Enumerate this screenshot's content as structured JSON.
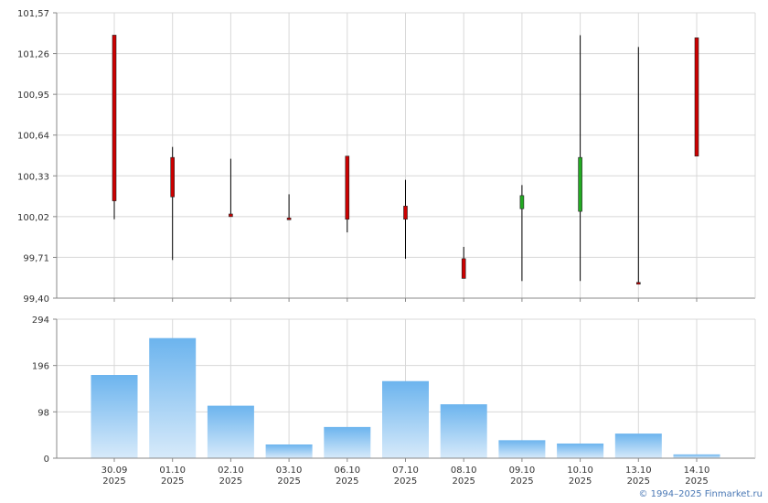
{
  "chart_data": [
    {
      "type": "candlestick",
      "ylim": [
        99.4,
        101.57
      ],
      "y_ticks": [
        "99,40",
        "99,71",
        "100,02",
        "100,33",
        "100,64",
        "100,95",
        "101,26",
        "101,57"
      ],
      "grid": true,
      "up_color": "#22aa22",
      "down_color": "#cc0000",
      "candles": [
        {
          "date": "30.09",
          "open": 101.4,
          "high": 101.4,
          "low": 100.0,
          "close": 100.14
        },
        {
          "date": "01.10",
          "open": 100.47,
          "high": 100.55,
          "low": 99.69,
          "close": 100.17
        },
        {
          "date": "02.10",
          "open": 100.04,
          "high": 100.46,
          "low": 100.02,
          "close": 100.02
        },
        {
          "date": "03.10",
          "open": 100.01,
          "high": 100.19,
          "low": 100.0,
          "close": 100.0
        },
        {
          "date": "06.10",
          "open": 100.48,
          "high": 100.48,
          "low": 99.9,
          "close": 100.0
        },
        {
          "date": "07.10",
          "open": 100.1,
          "high": 100.3,
          "low": 99.7,
          "close": 100.0
        },
        {
          "date": "08.10",
          "open": 99.7,
          "high": 99.79,
          "low": 99.55,
          "close": 99.55
        },
        {
          "date": "09.10",
          "open": 100.08,
          "high": 100.26,
          "low": 99.53,
          "close": 100.18
        },
        {
          "date": "10.10",
          "open": 100.06,
          "high": 101.4,
          "low": 99.53,
          "close": 100.47
        },
        {
          "date": "13.10",
          "open": 99.52,
          "high": 101.31,
          "low": 99.51,
          "close": 99.51
        },
        {
          "date": "14.10",
          "open": 101.38,
          "high": 101.38,
          "low": 100.48,
          "close": 100.48
        }
      ]
    },
    {
      "type": "bar",
      "ylim": [
        0,
        294
      ],
      "y_ticks": [
        "0",
        "98",
        "196",
        "294"
      ],
      "grid": true,
      "bar_color_top": "#6cb4ee",
      "bar_color_bottom": "#d7eafa",
      "categories": [
        "30.09",
        "01.10",
        "02.10",
        "03.10",
        "06.10",
        "07.10",
        "08.10",
        "09.10",
        "10.10",
        "13.10",
        "14.10"
      ],
      "category_years": [
        "2025",
        "2025",
        "2025",
        "2025",
        "2025",
        "2025",
        "2025",
        "2025",
        "2025",
        "2025",
        "2025"
      ],
      "values": [
        176,
        254,
        111,
        29,
        66,
        163,
        114,
        38,
        31,
        52,
        8
      ]
    }
  ],
  "footer": {
    "credit": "© 1994–2025 Finmarket.ru"
  }
}
